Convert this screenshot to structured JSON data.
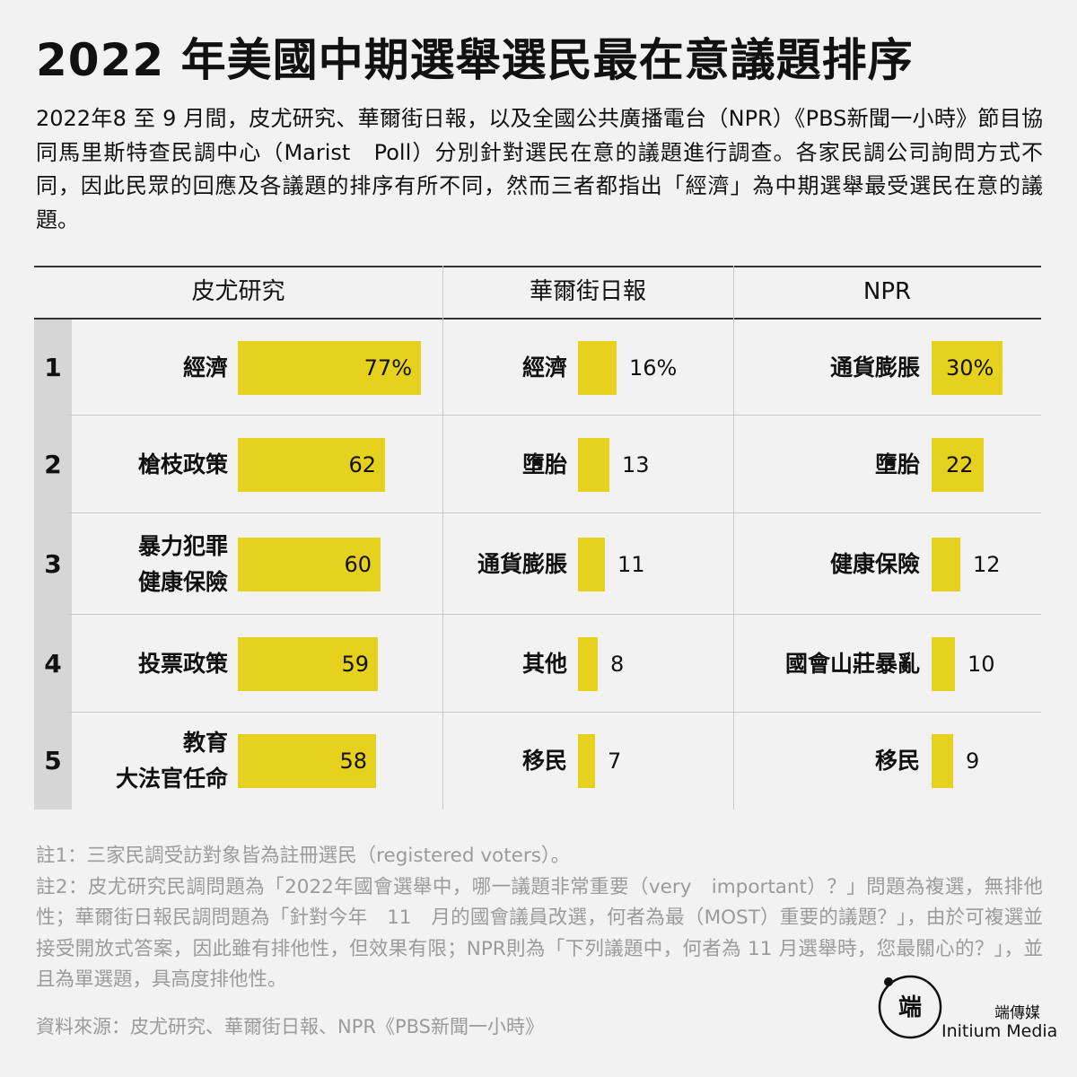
{
  "title": "2022 年美國中期選舉選民最在意議題排序",
  "intro": "2022年8 至 9 月間，皮尤研究、華爾街日報，以及全國公共廣播電台（NPR）《PBS新聞一小時》節目協同馬里斯特查民調中心（Marist　Poll）分別針對選民在意的議題進行調查。各家民調公司詢問方式不同，因此民眾的回應及各議題的排序有所不同，然而三者都指出「經濟」為中期選舉最受選民在意的議題。",
  "notes": {
    "note1": "註1：三家民調受訪對象皆為註冊選民（registered voters）。",
    "note2": "註2：皮尤研究民調問題為「2022年國會選舉中，哪一議題非常重要（very　important）？」問題為複選，無排他性；華爾街日報民調問題為「針對今年　11　月的國會議員改選，何者為最（MOST）重要的議題？」，由於可複選並接受開放式答案，因此雖有排他性，但效果有限；NPR則為「下列議題中，何者為 11 月選舉時，您最關心的？」，並且為單選題，具高度排他性。"
  },
  "source": "資料來源：皮尤研究、華爾街日報、NPR《PBS新聞一小時》",
  "brand": {
    "cn": "端傳媒",
    "en": "Initium Media",
    "logo_text": "端"
  },
  "colors": {
    "bar": "#e6d11f",
    "rank_bg": "#d6d6d6",
    "background": "#f2f2f2"
  },
  "chart_data": {
    "type": "table",
    "ranks": [
      "1",
      "2",
      "3",
      "4",
      "5"
    ],
    "columns": [
      {
        "name": "皮尤研究",
        "rows": [
          {
            "label": [
              "經濟"
            ],
            "value": 77,
            "display": "77%"
          },
          {
            "label": [
              "槍枝政策"
            ],
            "value": 62,
            "display": "62"
          },
          {
            "label": [
              "暴力犯罪",
              "健康保險"
            ],
            "value": 60,
            "display": "60"
          },
          {
            "label": [
              "投票政策"
            ],
            "value": 59,
            "display": "59"
          },
          {
            "label": [
              "教育",
              "大法官任命"
            ],
            "value": 58,
            "display": "58"
          }
        ]
      },
      {
        "name": "華爾街日報",
        "rows": [
          {
            "label": [
              "經濟"
            ],
            "value": 16,
            "display": "16%"
          },
          {
            "label": [
              "墮胎"
            ],
            "value": 13,
            "display": "13"
          },
          {
            "label": [
              "通貨膨脹"
            ],
            "value": 11,
            "display": "11"
          },
          {
            "label": [
              "其他"
            ],
            "value": 8,
            "display": "8"
          },
          {
            "label": [
              "移民"
            ],
            "value": 7,
            "display": "7"
          }
        ]
      },
      {
        "name": "NPR",
        "rows": [
          {
            "label": [
              "通貨膨脹"
            ],
            "value": 30,
            "display": "30%"
          },
          {
            "label": [
              "墮胎"
            ],
            "value": 22,
            "display": "22"
          },
          {
            "label": [
              "健康保險"
            ],
            "value": 12,
            "display": "12"
          },
          {
            "label": [
              "國會山莊暴亂"
            ],
            "value": 10,
            "display": "10"
          },
          {
            "label": [
              "移民"
            ],
            "value": 9,
            "display": "9"
          }
        ]
      }
    ]
  }
}
